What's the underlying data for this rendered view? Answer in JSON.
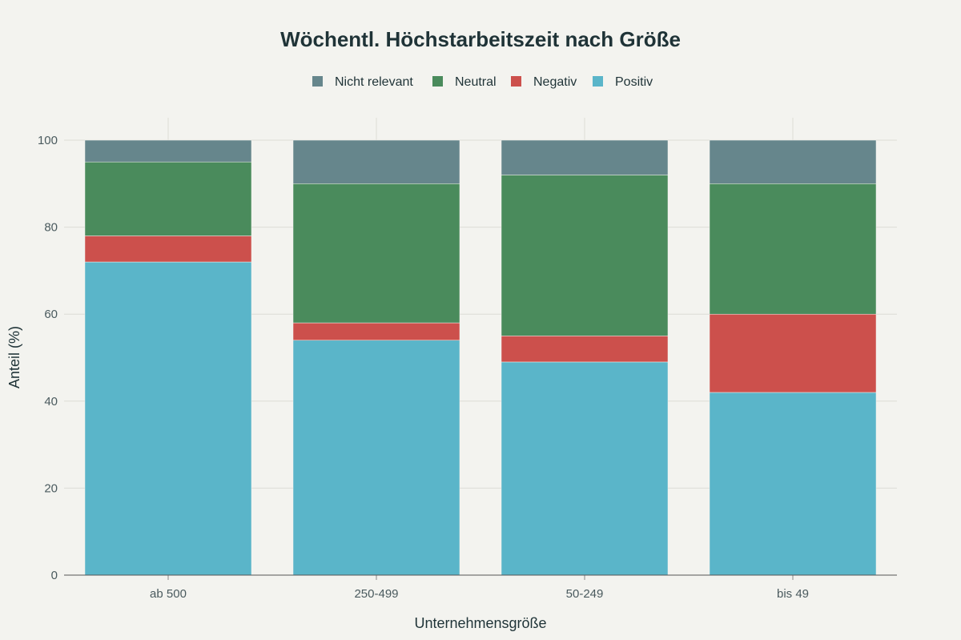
{
  "chart_data": {
    "type": "bar",
    "stacked": true,
    "title": "Wöchentl. Höchstarbeitszeit nach Größe",
    "xlabel": "Unternehmensgröße",
    "ylabel": "Anteil (%)",
    "ylim": [
      0,
      100
    ],
    "yticks": [
      0,
      20,
      40,
      60,
      80,
      100
    ],
    "grid": true,
    "legend_placement": "top-center",
    "categories": [
      "ab 500",
      "250-499",
      "50-249",
      "bis 49"
    ],
    "series": [
      {
        "name": "Positiv",
        "color": "#5ab5c9",
        "values": [
          72,
          54,
          49,
          42
        ]
      },
      {
        "name": "Negativ",
        "color": "#cc504c",
        "values": [
          6,
          4,
          6,
          18
        ]
      },
      {
        "name": "Neutral",
        "color": "#4a8b5c",
        "values": [
          17,
          32,
          37,
          30
        ]
      },
      {
        "name": "Nicht relevant",
        "color": "#66868c",
        "values": [
          5,
          10,
          8,
          10
        ]
      }
    ],
    "legend_order": [
      "Nicht relevant",
      "Neutral",
      "Negativ",
      "Positiv"
    ]
  }
}
